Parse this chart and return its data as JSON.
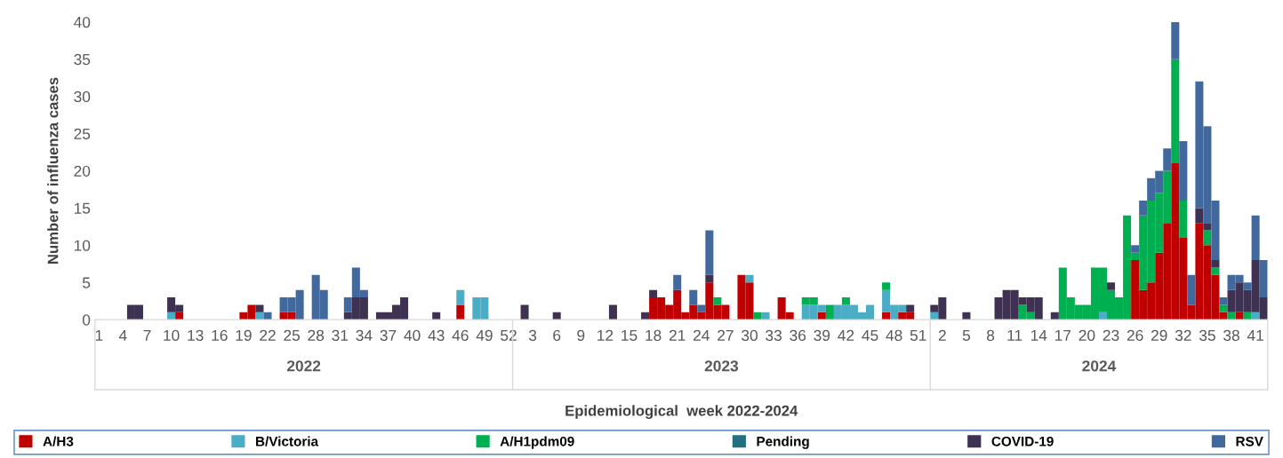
{
  "chart_data": {
    "type": "bar",
    "stacked": true,
    "xlabel": "Epidemiological  week 2022-2024",
    "ylabel": "Number of influenza cases",
    "annotations": [
      "2022",
      "2023",
      "2024"
    ],
    "categories": [
      "1",
      null,
      null,
      "4",
      null,
      null,
      "7",
      null,
      null,
      "10",
      null,
      null,
      "13",
      null,
      null,
      "16",
      null,
      null,
      "19",
      null,
      null,
      "22",
      null,
      null,
      "25",
      null,
      null,
      "28",
      null,
      null,
      "31",
      null,
      null,
      "34",
      null,
      null,
      "37",
      null,
      null,
      "40",
      null,
      null,
      "43",
      null,
      null,
      "46",
      null,
      null,
      "49",
      null,
      null,
      "52",
      null,
      null,
      "3",
      null,
      null,
      "6",
      null,
      null,
      "9",
      null,
      null,
      "12",
      null,
      null,
      "15",
      null,
      null,
      "18",
      null,
      null,
      "21",
      null,
      null,
      "24",
      null,
      null,
      "27",
      null,
      null,
      "30",
      null,
      null,
      "33",
      null,
      null,
      "36",
      null,
      null,
      "39",
      null,
      null,
      "42",
      null,
      null,
      "45",
      null,
      null,
      "48",
      null,
      null,
      "51",
      null,
      null,
      "2",
      null,
      null,
      "5",
      null,
      null,
      "8",
      null,
      null,
      "11",
      null,
      null,
      "14",
      null,
      null,
      "17",
      null,
      null,
      "20",
      null,
      null,
      "23",
      null,
      null,
      "26",
      null,
      null,
      "29",
      null,
      null,
      "32",
      null,
      null,
      "35",
      null,
      null,
      "38",
      null,
      null,
      "41",
      null
    ],
    "series": [
      {
        "name": "A/H3",
        "color": "#c00000",
        "values": [
          0,
          0,
          0,
          0,
          0,
          0,
          0,
          0,
          0,
          0,
          1,
          0,
          0,
          0,
          0,
          0,
          0,
          0,
          1,
          2,
          0,
          0,
          0,
          1,
          1,
          0,
          0,
          0,
          0,
          0,
          0,
          0,
          0,
          0,
          0,
          0,
          0,
          0,
          0,
          0,
          0,
          0,
          0,
          0,
          0,
          2,
          0,
          0,
          0,
          0,
          0,
          0,
          0,
          0,
          0,
          0,
          0,
          0,
          0,
          0,
          0,
          0,
          0,
          0,
          0,
          0,
          0,
          0,
          0,
          3,
          3,
          2,
          4,
          1,
          2,
          1,
          5,
          2,
          2,
          0,
          6,
          5,
          0,
          0,
          0,
          3,
          1,
          0,
          0,
          0,
          1,
          0,
          0,
          0,
          0,
          0,
          0,
          0,
          1,
          0,
          1,
          1,
          0,
          0,
          0,
          0,
          0,
          0,
          0,
          0,
          0,
          0,
          0,
          0,
          0,
          0,
          0,
          0,
          0,
          0,
          0,
          0,
          0,
          0,
          0,
          0,
          0,
          0,
          0,
          8,
          4,
          5,
          9,
          13,
          21,
          11,
          2,
          13,
          10,
          6,
          1,
          0,
          1,
          0,
          0,
          0
        ]
      },
      {
        "name": "B/Victoria",
        "color": "#4bacc6",
        "values": [
          0,
          0,
          0,
          0,
          0,
          0,
          0,
          0,
          0,
          1,
          0,
          0,
          0,
          0,
          0,
          0,
          0,
          0,
          0,
          0,
          1,
          0,
          0,
          0,
          0,
          0,
          0,
          0,
          0,
          0,
          0,
          0,
          0,
          0,
          0,
          0,
          0,
          0,
          0,
          0,
          0,
          0,
          0,
          0,
          0,
          2,
          0,
          3,
          3,
          0,
          0,
          0,
          0,
          0,
          0,
          0,
          0,
          0,
          0,
          0,
          0,
          0,
          0,
          0,
          0,
          0,
          0,
          0,
          0,
          0,
          0,
          0,
          0,
          0,
          0,
          0,
          0,
          0,
          0,
          0,
          0,
          1,
          0,
          1,
          0,
          0,
          0,
          0,
          2,
          2,
          1,
          0,
          2,
          2,
          2,
          1,
          2,
          0,
          3,
          2,
          1,
          0,
          0,
          0,
          1,
          0,
          0,
          0,
          0,
          0,
          0,
          0,
          0,
          0,
          0,
          0,
          0,
          0,
          0,
          0,
          0,
          0,
          0,
          0,
          0,
          1,
          0,
          0,
          0,
          0,
          0,
          0,
          0,
          0,
          0,
          0,
          0,
          0,
          0,
          0,
          0,
          0,
          0,
          0,
          1,
          0
        ]
      },
      {
        "name": "A/H1pdm09",
        "color": "#00b050",
        "values": [
          0,
          0,
          0,
          0,
          0,
          0,
          0,
          0,
          0,
          0,
          0,
          0,
          0,
          0,
          0,
          0,
          0,
          0,
          0,
          0,
          0,
          0,
          0,
          0,
          0,
          0,
          0,
          0,
          0,
          0,
          0,
          0,
          0,
          0,
          0,
          0,
          0,
          0,
          0,
          0,
          0,
          0,
          0,
          0,
          0,
          0,
          0,
          0,
          0,
          0,
          0,
          0,
          0,
          0,
          0,
          0,
          0,
          0,
          0,
          0,
          0,
          0,
          0,
          0,
          0,
          0,
          0,
          0,
          0,
          0,
          0,
          0,
          0,
          0,
          0,
          0,
          0,
          1,
          0,
          0,
          0,
          0,
          1,
          0,
          0,
          0,
          0,
          0,
          1,
          1,
          0,
          2,
          0,
          1,
          0,
          0,
          0,
          0,
          1,
          0,
          0,
          0,
          0,
          0,
          0,
          0,
          0,
          0,
          0,
          0,
          0,
          0,
          0,
          0,
          0,
          2,
          1,
          0,
          0,
          0,
          7,
          3,
          2,
          2,
          7,
          6,
          4,
          3,
          14,
          1,
          10,
          11,
          8,
          7,
          14,
          5,
          0,
          0,
          2,
          1,
          1,
          1,
          0,
          1,
          0,
          0
        ]
      },
      {
        "name": "Pending",
        "color": "#23707f",
        "values": [
          0,
          0,
          0,
          0,
          0,
          0,
          0,
          0,
          0,
          0,
          0,
          0,
          0,
          0,
          0,
          0,
          0,
          0,
          0,
          0,
          0,
          0,
          0,
          0,
          0,
          0,
          0,
          0,
          0,
          0,
          0,
          0,
          0,
          0,
          0,
          0,
          0,
          0,
          0,
          0,
          0,
          0,
          0,
          0,
          0,
          0,
          0,
          0,
          0,
          0,
          0,
          0,
          0,
          0,
          0,
          0,
          0,
          0,
          0,
          0,
          0,
          0,
          0,
          0,
          0,
          0,
          0,
          0,
          0,
          0,
          0,
          0,
          0,
          0,
          0,
          0,
          0,
          0,
          0,
          0,
          0,
          0,
          0,
          0,
          0,
          0,
          0,
          0,
          0,
          0,
          0,
          0,
          0,
          0,
          0,
          0,
          0,
          0,
          0,
          0,
          0,
          0,
          0,
          0,
          0,
          0,
          0,
          0,
          0,
          0,
          0,
          0,
          0,
          0,
          0,
          0,
          0,
          0,
          0,
          0,
          0,
          0,
          0,
          0,
          0,
          0,
          0,
          0,
          0,
          0,
          0,
          0,
          0,
          0,
          0,
          0,
          0,
          0,
          0,
          0,
          0,
          0,
          0,
          0,
          0,
          0
        ]
      },
      {
        "name": "COVID-19",
        "color": "#3f3151",
        "values": [
          0,
          0,
          0,
          0,
          2,
          2,
          0,
          0,
          0,
          2,
          1,
          0,
          0,
          0,
          0,
          0,
          0,
          0,
          0,
          0,
          1,
          0,
          0,
          0,
          0,
          0,
          0,
          0,
          0,
          0,
          0,
          1,
          3,
          3,
          0,
          1,
          1,
          2,
          3,
          0,
          0,
          0,
          1,
          0,
          0,
          0,
          0,
          0,
          0,
          0,
          0,
          0,
          0,
          2,
          0,
          0,
          0,
          1,
          0,
          0,
          0,
          0,
          0,
          0,
          2,
          0,
          0,
          0,
          1,
          1,
          0,
          0,
          0,
          0,
          0,
          0,
          1,
          0,
          0,
          0,
          0,
          0,
          0,
          0,
          0,
          0,
          0,
          0,
          0,
          0,
          0,
          0,
          0,
          0,
          0,
          0,
          0,
          0,
          0,
          0,
          0,
          1,
          0,
          0,
          1,
          3,
          0,
          0,
          1,
          0,
          0,
          0,
          3,
          4,
          4,
          1,
          2,
          3,
          0,
          1,
          0,
          0,
          0,
          0,
          0,
          0,
          1,
          0,
          0,
          0,
          0,
          0,
          0,
          0,
          0,
          0,
          0,
          2,
          1,
          1,
          0,
          3,
          4,
          3,
          7,
          3
        ]
      },
      {
        "name": "RSV",
        "color": "#41699e",
        "values": [
          0,
          0,
          0,
          0,
          0,
          0,
          0,
          0,
          0,
          0,
          0,
          0,
          0,
          0,
          0,
          0,
          0,
          0,
          0,
          0,
          0,
          1,
          0,
          2,
          2,
          4,
          0,
          6,
          4,
          0,
          0,
          2,
          4,
          1,
          0,
          0,
          0,
          0,
          0,
          0,
          0,
          0,
          0,
          0,
          0,
          0,
          0,
          0,
          0,
          0,
          0,
          0,
          0,
          0,
          0,
          0,
          0,
          0,
          0,
          0,
          0,
          0,
          0,
          0,
          0,
          0,
          0,
          0,
          0,
          0,
          0,
          0,
          2,
          0,
          2,
          1,
          6,
          0,
          0,
          0,
          0,
          0,
          0,
          0,
          0,
          0,
          0,
          0,
          0,
          0,
          0,
          0,
          0,
          0,
          0,
          0,
          0,
          0,
          0,
          0,
          0,
          0,
          0,
          0,
          0,
          0,
          0,
          0,
          0,
          0,
          0,
          0,
          0,
          0,
          0,
          0,
          0,
          0,
          0,
          0,
          0,
          0,
          0,
          0,
          0,
          0,
          0,
          0,
          0,
          1,
          2,
          3,
          3,
          3,
          5,
          8,
          4,
          17,
          13,
          8,
          1,
          2,
          1,
          1,
          6,
          5
        ]
      }
    ],
    "ylim": [
      0,
      40
    ],
    "yticks": [
      0,
      5,
      10,
      15,
      20,
      25,
      30,
      35,
      40
    ],
    "legend": "bottom"
  }
}
